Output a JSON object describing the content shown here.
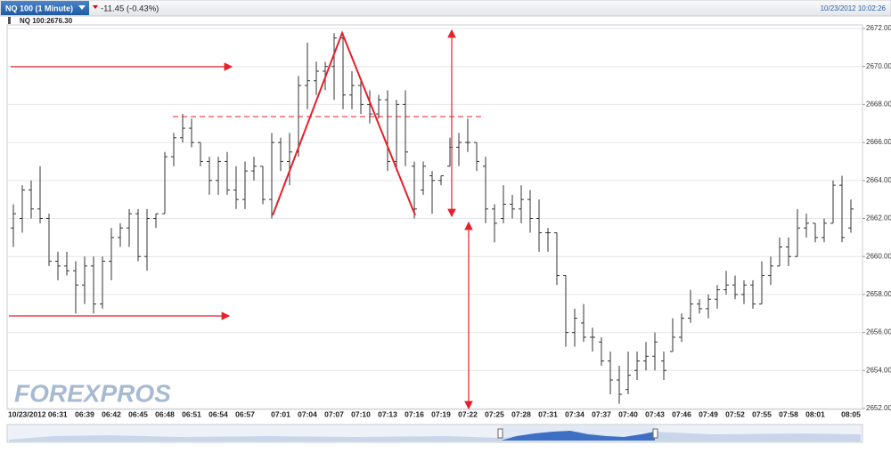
{
  "chart_data": {
    "type": "ohlc",
    "title": "NQ 100 (1 Minute)",
    "change": "-11.45 (-0.43%)",
    "timestamp": "10/23/2012 10:02:26",
    "subtitle": "NQ 100:2676.30",
    "watermark": "FOREXPROS",
    "color": "#333333",
    "grid": true,
    "ylim": [
      2652,
      2672
    ],
    "yticks": [
      {
        "value": 2652,
        "label": "2652.00"
      },
      {
        "value": 2654,
        "label": "2654.00"
      },
      {
        "value": 2656,
        "label": "2656.00"
      },
      {
        "value": 2658,
        "label": "2658.00"
      },
      {
        "value": 2660,
        "label": "2660.00"
      },
      {
        "value": 2662,
        "label": "2662.00"
      },
      {
        "value": 2664,
        "label": "2664.00"
      },
      {
        "value": 2666,
        "label": "2666.00"
      },
      {
        "value": 2668,
        "label": "2668.00"
      },
      {
        "value": 2670,
        "label": "2670.00"
      },
      {
        "value": 2672,
        "label": "2672.00"
      }
    ],
    "categories": [
      "10/23/2012 06:31",
      null,
      null,
      null,
      null,
      null,
      null,
      null,
      "06:39",
      null,
      null,
      "06:42",
      null,
      null,
      "06:45",
      null,
      null,
      "06:48",
      null,
      null,
      "06:51",
      null,
      null,
      "06:54",
      null,
      null,
      "06:57",
      null,
      null,
      null,
      "07:01",
      null,
      null,
      "07:04",
      null,
      null,
      "07:07",
      null,
      null,
      "07:10",
      null,
      null,
      "07:13",
      null,
      null,
      "07:16",
      null,
      null,
      "07:19",
      null,
      null,
      "07:22",
      null,
      null,
      "07:25",
      null,
      null,
      "07:28",
      null,
      null,
      "07:31",
      null,
      null,
      "07:34",
      null,
      null,
      "07:37",
      null,
      null,
      "07:40",
      null,
      null,
      "07:43",
      null,
      null,
      "07:46",
      null,
      null,
      "07:49",
      null,
      null,
      "07:52",
      null,
      null,
      "07:55",
      null,
      null,
      "07:58",
      null,
      null,
      "08:01",
      null,
      null,
      null,
      "08:05"
    ],
    "open": [
      2661.5,
      2662,
      2663.5,
      2662.5,
      2662,
      2659.75,
      2659.5,
      2659.25,
      2658.5,
      2659.5,
      2657.5,
      2659.75,
      2661,
      2661.5,
      2662.25,
      2660,
      2662,
      2662.25,
      2665.25,
      2666.25,
      2666.75,
      2666,
      2665,
      2664,
      2665,
      2663.5,
      2663,
      2664.5,
      2664.75,
      2663,
      2666,
      2665,
      2665.5,
      2669,
      2669.25,
      2669.75,
      2670,
      2671.5,
      2668.5,
      2669,
      2668,
      2667.5,
      2668.25,
      2665,
      2668,
      2664.75,
      2663.5,
      2664.25,
      2664,
      2664.75,
      2665.75,
      2666,
      2666,
      2664.75,
      2662.5,
      2662,
      2662.75,
      2662.5,
      2663,
      2662,
      2661.25,
      2661.25,
      2659,
      2656,
      2656.5,
      2655.75,
      2655.5,
      2654.5,
      2653.5,
      2653,
      2654,
      2654.5,
      2654.75,
      2654.5,
      2655,
      2655.75,
      2656.75,
      2657.5,
      2657.25,
      2657.75,
      2658.25,
      2658.5,
      2658,
      2658.5,
      2657.5,
      2659,
      2659.5,
      2660.5,
      2660,
      2661.5,
      2661.75,
      2661,
      2661.75,
      2663.75,
      2661.5
    ],
    "high": [
      2662.75,
      2663.75,
      2664,
      2664.75,
      2662.25,
      2660.25,
      2660.25,
      2659.75,
      2660,
      2660,
      2660,
      2661.5,
      2661.75,
      2662.5,
      2662.5,
      2662.5,
      2662.25,
      2665.5,
      2666.5,
      2667.5,
      2667.25,
      2666,
      2665.25,
      2665.25,
      2665.5,
      2664.75,
      2665,
      2665.25,
      2664.75,
      2666.5,
      2666.25,
      2666.5,
      2669.5,
      2671.25,
      2670.25,
      2670.25,
      2671.75,
      2671.75,
      2669.75,
      2669.25,
      2668.75,
      2668.5,
      2668.75,
      2668.25,
      2668.75,
      2665,
      2665,
      2664.5,
      2664.25,
      2666.25,
      2666.5,
      2667.25,
      2666,
      2665.25,
      2662.75,
      2663.75,
      2663.25,
      2663.75,
      2663.5,
      2663,
      2661.5,
      2661.25,
      2659,
      2657.25,
      2657.5,
      2656.25,
      2655.75,
      2655,
      2654.25,
      2655,
      2655,
      2655.5,
      2656,
      2655,
      2656.75,
      2657,
      2658.25,
      2657.75,
      2658,
      2658.5,
      2659.25,
      2659,
      2658.75,
      2658.75,
      2659.75,
      2660,
      2661,
      2661,
      2662.5,
      2662.25,
      2661.75,
      2662,
      2664,
      2664.25,
      2663
    ],
    "low": [
      2660.5,
      2661.25,
      2662,
      2661.75,
      2659.5,
      2658.75,
      2659,
      2657,
      2657.5,
      2657,
      2657.25,
      2658.75,
      2660.5,
      2660.5,
      2659.75,
      2659.25,
      2661.5,
      2662.25,
      2664.75,
      2666,
      2665.75,
      2664.75,
      2663.25,
      2663.25,
      2663.25,
      2662.5,
      2662.5,
      2664,
      2662.75,
      2662,
      2664.5,
      2663.75,
      2665.25,
      2667.75,
      2668.5,
      2668.75,
      2668.25,
      2667.75,
      2667.75,
      2667.5,
      2667,
      2667.25,
      2664.5,
      2664.5,
      2664.75,
      2662,
      2663.25,
      2662.25,
      2663.75,
      2664.75,
      2664.75,
      2665.5,
      2664.5,
      2661.75,
      2660.75,
      2661.75,
      2662,
      2661.75,
      2661.25,
      2660.25,
      2660.25,
      2658.5,
      2655.25,
      2655.25,
      2655.5,
      2655,
      2654.25,
      2652.75,
      2652.25,
      2652.75,
      2653.5,
      2654,
      2654,
      2653.5,
      2655,
      2655.5,
      2656.5,
      2657,
      2656.75,
      2657.25,
      2658,
      2657.75,
      2657.5,
      2657.25,
      2657.5,
      2658.5,
      2659.5,
      2659.5,
      2660,
      2661,
      2660.75,
      2660.75,
      2661.75,
      2660.75,
      2661.25
    ],
    "close": [
      2662.25,
      2663.5,
      2662.5,
      2662,
      2659.75,
      2659.5,
      2659.25,
      2658.5,
      2659.5,
      2657.5,
      2659.75,
      2661,
      2661.5,
      2662.25,
      2660,
      2662,
      2662.25,
      2665.25,
      2666.25,
      2666.75,
      2666,
      2665,
      2664,
      2665,
      2663.5,
      2663,
      2664.5,
      2664.75,
      2663,
      2666,
      2665,
      2665.5,
      2669,
      2669.25,
      2669.75,
      2670,
      2671.5,
      2668.5,
      2669,
      2668,
      2667.5,
      2668.25,
      2665,
      2668,
      2665.5,
      2662.5,
      2664.75,
      2664,
      2664.25,
      2665.75,
      2666,
      2666,
      2665,
      2662.5,
      2661.75,
      2662.75,
      2662.5,
      2663,
      2662,
      2661.25,
      2661.25,
      2659,
      2656,
      2656.75,
      2655.75,
      2655.75,
      2654.5,
      2653.5,
      2652.75,
      2653.75,
      2654.5,
      2654.75,
      2655.5,
      2654,
      2655.75,
      2656.75,
      2657.5,
      2657.25,
      2657.75,
      2658.25,
      2658.5,
      2658,
      2658.5,
      2657.5,
      2659,
      2659.5,
      2660.5,
      2660,
      2661.5,
      2661.75,
      2661,
      2661.75,
      2663.75,
      2661,
      2662.5
    ]
  }
}
